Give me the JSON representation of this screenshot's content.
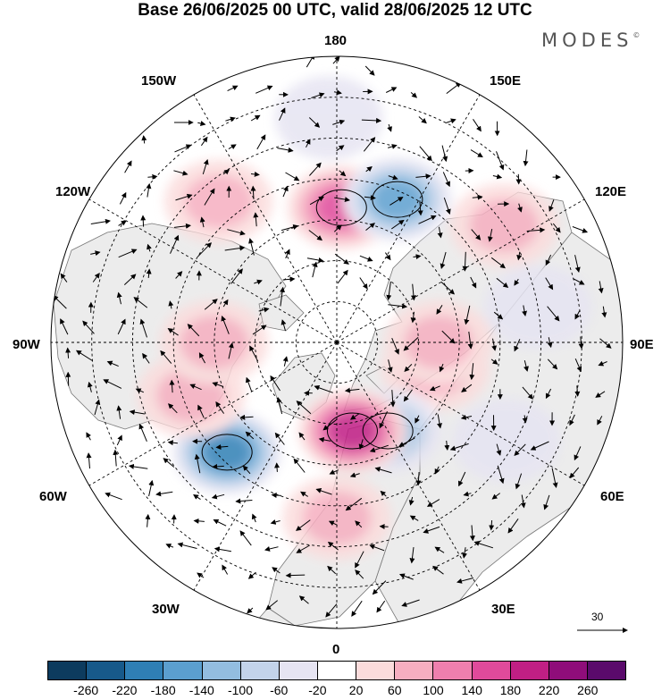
{
  "title": "Base 26/06/2025 00 UTC, valid 28/06/2025 12 UTC",
  "logo": {
    "text": "MODES",
    "mark": "©"
  },
  "longitude_labels": {
    "top": "180",
    "bottom": "0",
    "left": "90W",
    "right": "90E",
    "upper_left_1": "150W",
    "upper_left_2": "120W",
    "upper_right_1": "150E",
    "upper_right_2": "120E",
    "lower_left_1": "60W",
    "lower_left_2": "30W",
    "lower_right_1": "60E",
    "lower_right_2": "30E"
  },
  "reference_vector": {
    "value": "30"
  },
  "colorbar": {
    "colors": [
      "#0d3b5e",
      "#17598a",
      "#2f7fb5",
      "#5b9fcf",
      "#93bde0",
      "#c3d3ea",
      "#e6e4f2",
      "#ffffff",
      "#fbdcdc",
      "#f6aec0",
      "#ef7fae",
      "#e04a9b",
      "#c01f84",
      "#8f0d7a",
      "#5a0a6b"
    ],
    "ticks": [
      "-260",
      "-220",
      "-180",
      "-140",
      "-100",
      "-60",
      "-20",
      "20",
      "60",
      "100",
      "140",
      "180",
      "220",
      "260"
    ]
  },
  "map": {
    "projection": "north polar stereographic",
    "field": "anomaly shading with wind vectors",
    "anomalies": [
      {
        "lon": -140,
        "colat": 45,
        "value": 60
      },
      {
        "lon": 178,
        "colat": 33,
        "value": 140
      },
      {
        "lon": 157,
        "colat": 38,
        "value": -140
      },
      {
        "lon": 125,
        "colat": 50,
        "value": 60
      },
      {
        "lon": -178,
        "colat": 55,
        "value": -20
      },
      {
        "lon": 75,
        "colat": 25,
        "value": 60
      },
      {
        "lon": 90,
        "colat": 25,
        "value": 60
      },
      {
        "lon": 60,
        "colat": 48,
        "value": -20
      },
      {
        "lon": 30,
        "colat": 25,
        "value": -100
      },
      {
        "lon": 10,
        "colat": 22,
        "value": 180
      },
      {
        "lon": 0,
        "colat": 43,
        "value": 60
      },
      {
        "lon": -45,
        "colat": 38,
        "value": -180
      },
      {
        "lon": -70,
        "colat": 38,
        "value": 60
      },
      {
        "lon": -90,
        "colat": 30,
        "value": 60
      },
      {
        "lon": 100,
        "colat": 50,
        "value": -20
      }
    ]
  }
}
